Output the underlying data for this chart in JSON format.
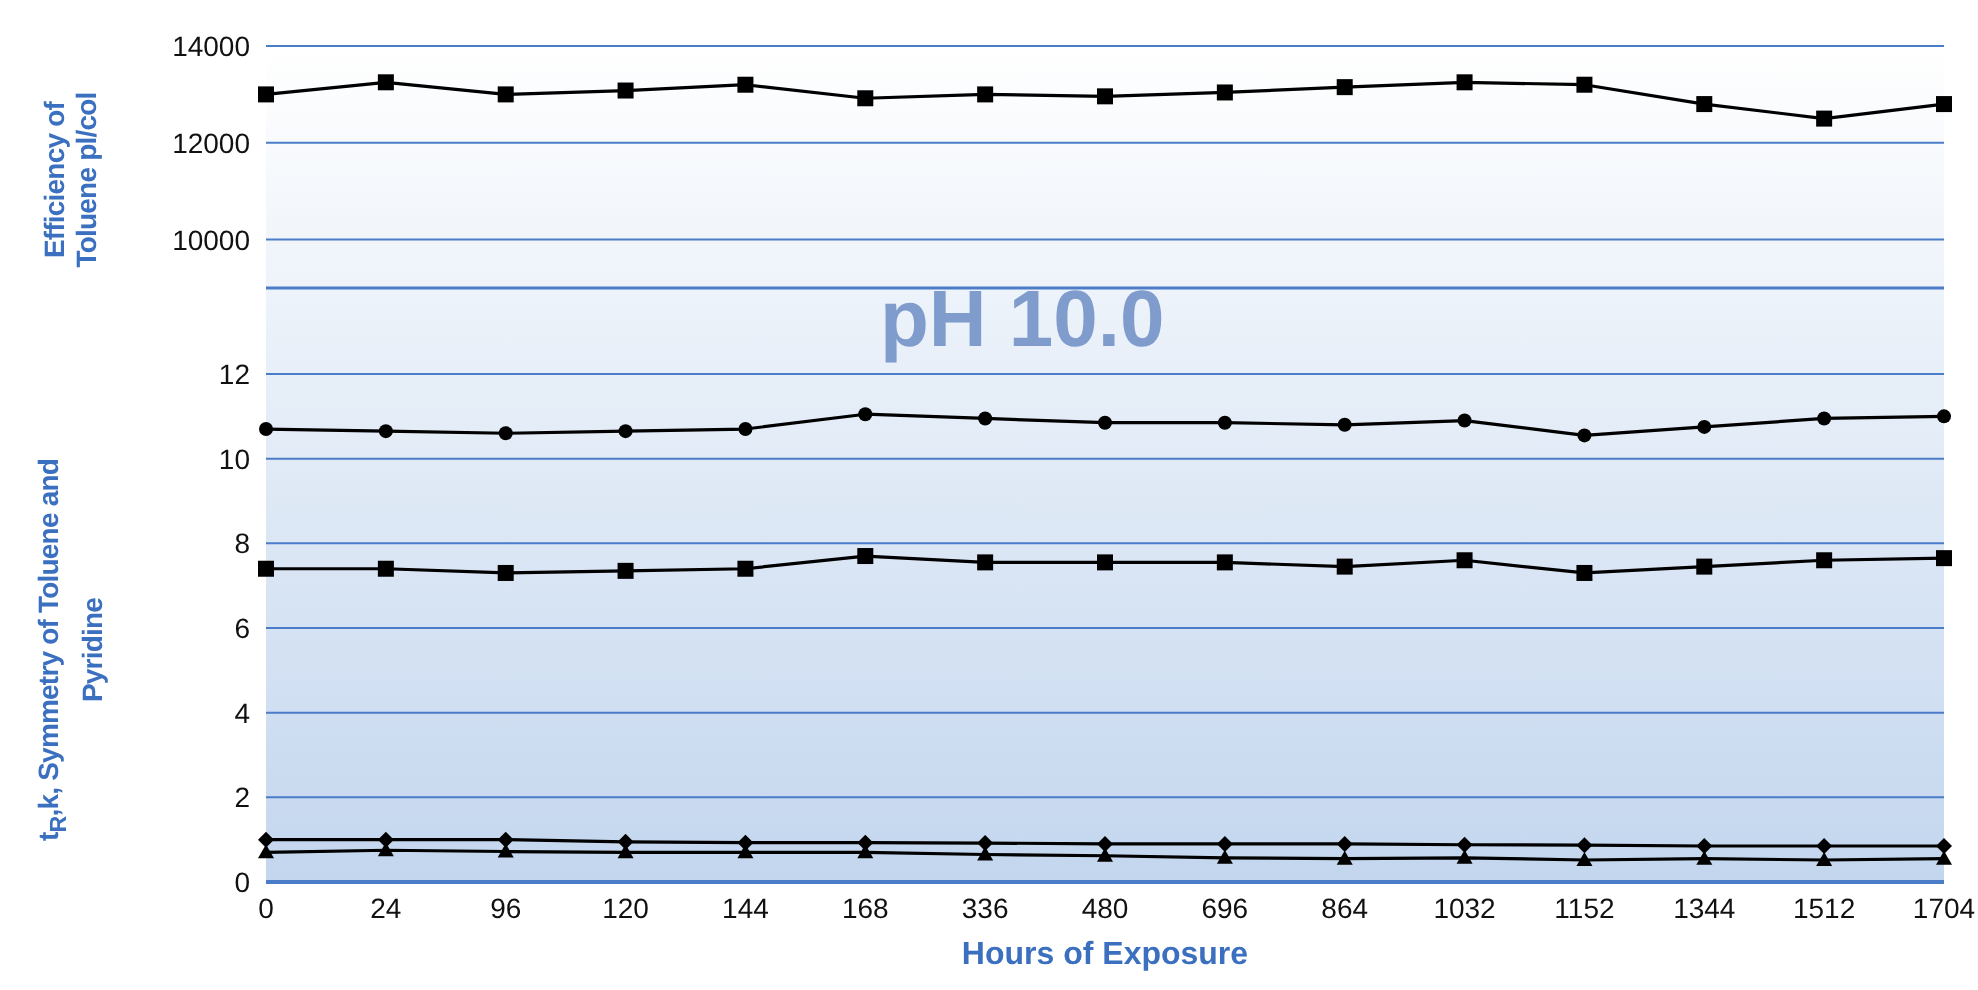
{
  "chart_data": [
    {
      "type": "line",
      "title": "pH 10.0",
      "ylabel": "Efficiency of Toluene pl/col",
      "categories": [
        "0",
        "24",
        "96",
        "120",
        "144",
        "168",
        "336",
        "480",
        "696",
        "864",
        "1032",
        "1152",
        "1344",
        "1512",
        "1704"
      ],
      "series": [
        {
          "color": "#000000",
          "marker": "square",
          "values": [
            13000,
            13250,
            13000,
            13080,
            13200,
            12920,
            13000,
            12960,
            13040,
            13150,
            13250,
            13200,
            12800,
            12500,
            12800
          ]
        }
      ],
      "ylim": [
        9000,
        14000
      ],
      "yticks": [
        10000,
        12000,
        14000
      ],
      "grid": "y",
      "tick_labels": "y",
      "line_style": "solid"
    },
    {
      "type": "line",
      "xlabel": "Hours of Exposure",
      "ylabel": "t$_{R}$,k, Symmetry of Toluene and Pyridine",
      "categories": [
        "0",
        "24",
        "96",
        "120",
        "144",
        "168",
        "336",
        "480",
        "696",
        "864",
        "1032",
        "1152",
        "1344",
        "1512",
        "1704"
      ],
      "series": [
        {
          "color": "#000000",
          "marker": "circle",
          "values": [
            10.7,
            10.65,
            10.6,
            10.65,
            10.7,
            11.05,
            10.95,
            10.85,
            10.85,
            10.8,
            10.9,
            10.55,
            10.75,
            10.95,
            11.0
          ]
        },
        {
          "color": "#000000",
          "marker": "square",
          "values": [
            7.4,
            7.4,
            7.3,
            7.35,
            7.4,
            7.7,
            7.55,
            7.55,
            7.55,
            7.45,
            7.6,
            7.3,
            7.45,
            7.6,
            7.65
          ]
        },
        {
          "color": "#000000",
          "marker": "diamond",
          "values": [
            1.0,
            1.0,
            1.0,
            0.95,
            0.93,
            0.93,
            0.92,
            0.9,
            0.9,
            0.9,
            0.88,
            0.87,
            0.85,
            0.85,
            0.85
          ]
        },
        {
          "color": "#000000",
          "marker": "triangle",
          "values": [
            0.7,
            0.75,
            0.72,
            0.7,
            0.7,
            0.7,
            0.65,
            0.62,
            0.57,
            0.55,
            0.57,
            0.52,
            0.55,
            0.52,
            0.55
          ]
        }
      ],
      "ylim": [
        0,
        12
      ],
      "yticks": [
        0,
        2,
        4,
        6,
        8,
        10,
        12
      ],
      "grid": "y",
      "line_style": "solid"
    }
  ]
}
